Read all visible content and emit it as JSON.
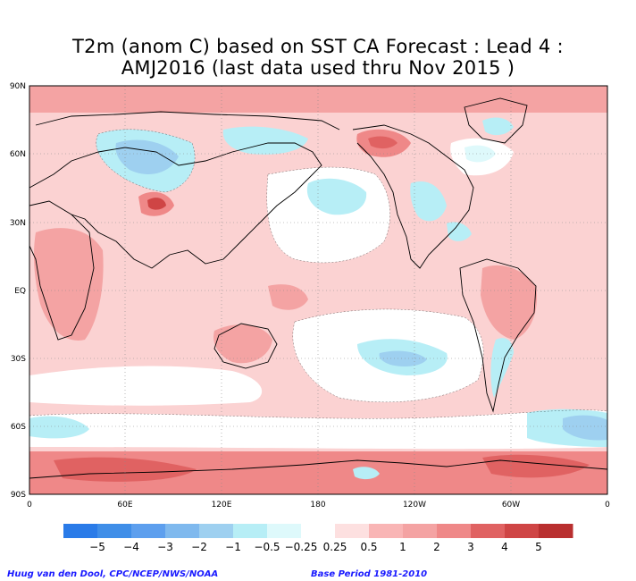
{
  "title_line1": "T2m (anom C) based on SST CA Forecast : Lead 4 :",
  "title_line2": "AMJ2016 (last data used thru Nov 2015 )",
  "map": {
    "lat_labels": [
      "90N",
      "60N",
      "30N",
      "EQ",
      "30S",
      "60S",
      "90S"
    ],
    "lon_labels": [
      "0",
      "60E",
      "120E",
      "180",
      "120W",
      "60W",
      "0"
    ],
    "colors": {
      "ocean_white": "#ffffff",
      "pos_025": "#fde0e0",
      "pos_05": "#f9b5b5",
      "pos_1": "#f4a3a3",
      "pos_2": "#ef8888",
      "pos_3": "#e06262",
      "pos_4": "#cf4545",
      "neg_025": "#def9fb",
      "neg_05": "#b7eef6",
      "neg_1": "#9ed0f0",
      "neg_2": "#7fb9ee"
    }
  },
  "colorbar": {
    "colors": [
      "#2a7be8",
      "#3f8ee8",
      "#5d9fee",
      "#7fb9ee",
      "#9ed0f0",
      "#b7eef6",
      "#def9fb",
      "#ffffff",
      "#fde0e0",
      "#f9b5b5",
      "#f4a3a3",
      "#ef8888",
      "#e06262",
      "#cf4545",
      "#b92f2f"
    ],
    "labels": [
      "−5",
      "−4",
      "−3",
      "−2",
      "−1",
      "−0.5",
      "−0.25",
      "0.25",
      "0.5",
      "1",
      "2",
      "3",
      "4",
      "5"
    ]
  },
  "credit_left": "Huug van den Dool, CPC/NCEP/NWS/NOAA",
  "credit_right": "Base Period 1981-2010"
}
